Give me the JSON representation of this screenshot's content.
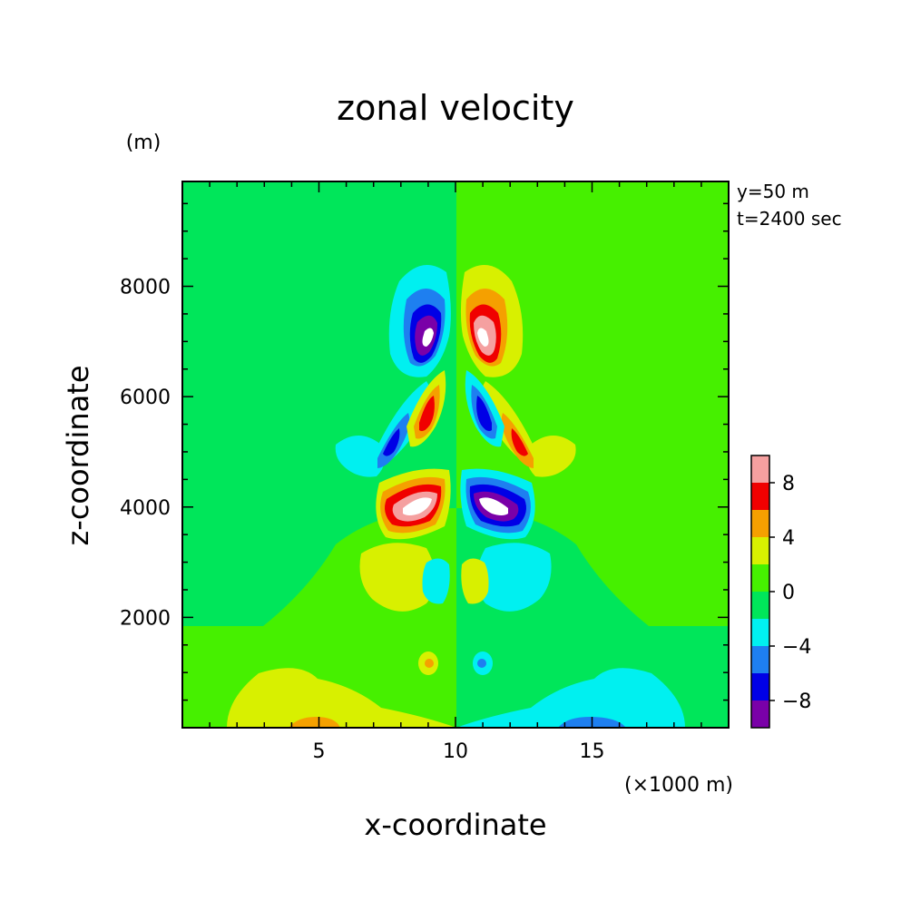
{
  "chart_data": {
    "type": "heatmap",
    "title": "zonal velocity",
    "xlabel": "x-coordinate",
    "ylabel": "z-coordinate",
    "x_unit": "(×1000 m)",
    "y_unit": "(m)",
    "annotations": [
      "y=50 m",
      "t=2400 sec"
    ],
    "xlim": [
      0,
      20
    ],
    "ylim": [
      0,
      9900
    ],
    "x_ticks": [
      {
        "value": 5,
        "label": "5"
      },
      {
        "value": 10,
        "label": "10"
      },
      {
        "value": 15,
        "label": "15"
      }
    ],
    "y_ticks": [
      {
        "value": 2000,
        "label": "2000"
      },
      {
        "value": 4000,
        "label": "4000"
      },
      {
        "value": 6000,
        "label": "6000"
      },
      {
        "value": 8000,
        "label": "8000"
      }
    ],
    "colorbar": {
      "levels": [
        -10,
        -8,
        -6,
        -4,
        -2,
        0,
        2,
        4,
        6,
        8,
        10
      ],
      "colors": [
        "#7a00a8",
        "#0000e6",
        "#1e7ff0",
        "#00f0f0",
        "#00e65a",
        "#46f000",
        "#d8f000",
        "#f5a000",
        "#f00000",
        "#f5a0a0"
      ],
      "tick_labels": [
        {
          "value": 8,
          "label": "8"
        },
        {
          "value": 4,
          "label": "4"
        },
        {
          "value": 0,
          "label": "0"
        },
        {
          "value": -4,
          "label": "−4"
        },
        {
          "value": -8,
          "label": "−8"
        }
      ]
    },
    "background_colors": {
      "left_half": "#00e65a",
      "right_half": "#46f000"
    },
    "features": [
      {
        "x": 9.0,
        "z": 7200,
        "sign": "negative",
        "peak": -10
      },
      {
        "x": 11.0,
        "z": 7200,
        "sign": "positive",
        "peak": 10
      },
      {
        "x": 8.3,
        "z": 4200,
        "sign": "positive",
        "peak": 10
      },
      {
        "x": 11.7,
        "z": 4200,
        "sign": "negative",
        "peak": -10
      },
      {
        "x": 7.6,
        "z": 5300,
        "sign": "negative",
        "peak": -8
      },
      {
        "x": 12.4,
        "z": 5300,
        "sign": "positive",
        "peak": 8
      },
      {
        "x": 8.8,
        "z": 5800,
        "sign": "positive",
        "peak": 8
      },
      {
        "x": 11.2,
        "z": 5800,
        "sign": "negative",
        "peak": -8
      },
      {
        "x": 6.8,
        "z": 5000,
        "sign": "negative",
        "peak": -4
      },
      {
        "x": 13.2,
        "z": 5000,
        "sign": "positive",
        "peak": 4
      },
      {
        "x": 7.3,
        "z": 3000,
        "sign": "positive",
        "peak": 4
      },
      {
        "x": 12.7,
        "z": 3000,
        "sign": "negative",
        "peak": -4
      },
      {
        "x": 9.0,
        "z": 1200,
        "sign": "positive",
        "peak": 8
      },
      {
        "x": 11.0,
        "z": 1200,
        "sign": "negative",
        "peak": -8
      },
      {
        "x": 5.0,
        "z": 0,
        "sign": "positive",
        "peak": 6
      },
      {
        "x": 15.0,
        "z": 0,
        "sign": "negative",
        "peak": -6
      }
    ]
  }
}
